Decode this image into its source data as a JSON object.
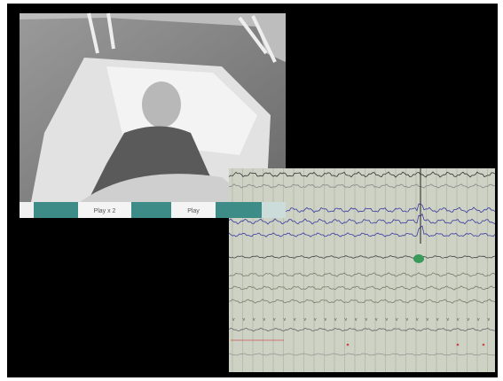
{
  "video_controls": {
    "buttons": [
      "Play x 2",
      "Play"
    ]
  }
}
